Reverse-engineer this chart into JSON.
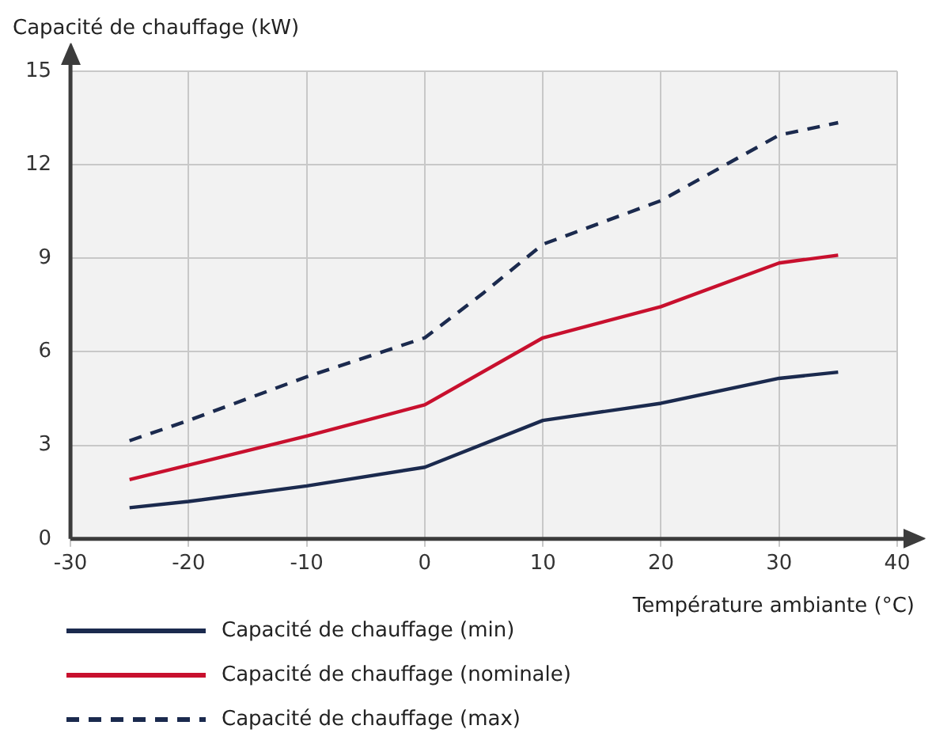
{
  "chart_data": {
    "type": "line",
    "ylabel": "Capacité de chauffage (kW)",
    "xlabel": "Température ambiante (°C)",
    "xlim": [
      -30,
      40
    ],
    "xticks": [
      -30,
      -20,
      -10,
      0,
      10,
      20,
      30,
      40
    ],
    "ylim": [
      0,
      15
    ],
    "yticks": [
      0,
      3,
      6,
      9,
      12,
      15
    ],
    "grid": true,
    "legend": "bottom left",
    "marker": "none",
    "series": [
      {
        "name": "Capacité de chauffage (min)",
        "color": "#1b2a4e",
        "line_style": "solid",
        "x": [
          -25,
          -20,
          -10,
          0,
          10,
          20,
          30,
          35
        ],
        "values": [
          1.0,
          1.2,
          1.7,
          2.3,
          3.8,
          4.35,
          5.15,
          5.35
        ]
      },
      {
        "name": "Capacité de chauffage (nominale)",
        "color": "#c8102e",
        "line_style": "solid",
        "x": [
          -25,
          -10,
          0,
          10,
          20,
          30,
          35
        ],
        "values": [
          1.9,
          3.3,
          4.3,
          6.45,
          7.45,
          8.85,
          9.1
        ]
      },
      {
        "name": "Capacité de chauffage (max)",
        "color": "#1b2a4e",
        "line_style": "dashed",
        "x": [
          -25,
          -20,
          -10,
          0,
          5,
          10,
          20,
          30,
          35
        ],
        "values": [
          3.15,
          3.8,
          5.2,
          6.45,
          7.9,
          9.45,
          10.85,
          12.95,
          13.35
        ]
      }
    ]
  }
}
